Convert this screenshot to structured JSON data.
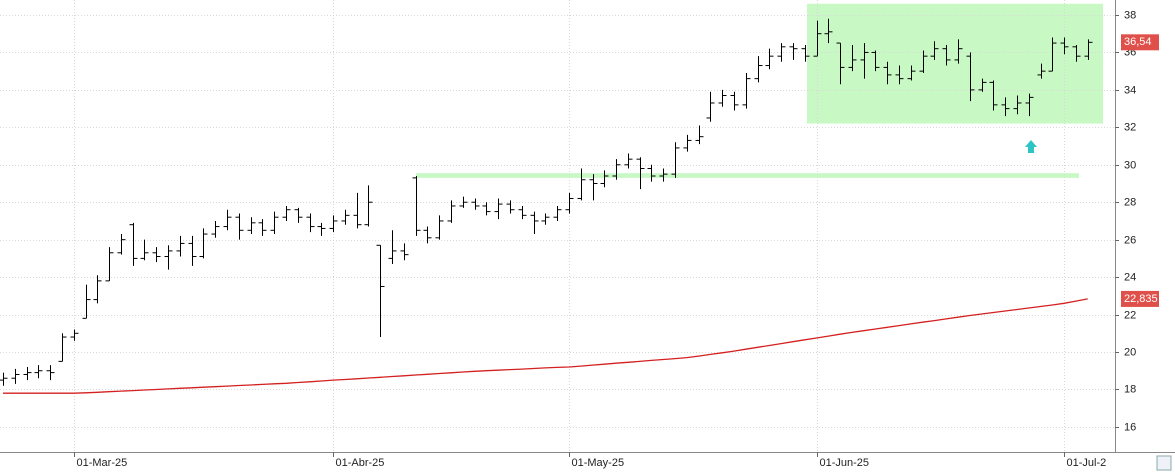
{
  "chart_data": {
    "type": "ohlc",
    "categories": [
      null,
      null,
      null,
      null,
      null,
      null,
      "01-Mar-25",
      null,
      null,
      null,
      null,
      null,
      null,
      null,
      null,
      null,
      null,
      null,
      null,
      null,
      null,
      null,
      null,
      null,
      null,
      null,
      null,
      null,
      "01-Abr-25",
      null,
      null,
      null,
      null,
      null,
      null,
      null,
      null,
      null,
      null,
      null,
      null,
      null,
      null,
      null,
      null,
      null,
      null,
      null,
      "01-May-25",
      null,
      null,
      null,
      null,
      null,
      null,
      null,
      null,
      null,
      null,
      null,
      null,
      null,
      null,
      null,
      null,
      null,
      null,
      null,
      null,
      "01-Jun-25",
      null,
      null,
      null,
      null,
      null,
      null,
      null,
      null,
      null,
      null,
      null,
      null,
      null,
      null,
      null,
      null,
      null,
      null,
      null,
      null,
      "01-Jul-2",
      null,
      null
    ],
    "open": [
      18.5,
      18.6,
      18.8,
      18.9,
      19.0,
      19.5,
      20.8,
      21.8,
      22.8,
      23.8,
      25.3,
      26.8,
      25.0,
      25.3,
      25.1,
      25.4,
      25.8,
      25.1,
      26.3,
      26.7,
      27.2,
      26.5,
      26.9,
      26.5,
      27.2,
      27.6,
      27.2,
      26.7,
      26.6,
      27.0,
      27.3,
      26.8,
      25.7,
      25.0,
      25.4,
      29.3,
      26.5,
      26.1,
      27.0,
      27.8,
      28.0,
      27.8,
      27.5,
      27.9,
      27.6,
      27.3,
      27.0,
      27.2,
      27.6,
      28.2,
      29.2,
      29.0,
      29.4,
      30.0,
      30.3,
      29.8,
      29.4,
      29.5,
      30.9,
      31.3,
      32.5,
      33.3,
      33.7,
      33.2,
      34.6,
      35.3,
      35.8,
      36.3,
      36.2,
      35.8,
      37.0,
      36.5,
      35.2,
      35.6,
      36.0,
      35.2,
      34.8,
      34.6,
      35.0,
      35.8,
      36.2,
      35.6,
      35.8,
      34.0,
      34.4,
      33.2,
      33.0,
      33.3,
      34.8,
      35.0,
      36.5,
      36.3,
      35.8
    ],
    "high": [
      18.9,
      19.1,
      19.2,
      19.3,
      19.3,
      21.0,
      21.2,
      23.6,
      24.1,
      25.6,
      26.3,
      26.9,
      26.0,
      25.6,
      25.7,
      26.2,
      26.2,
      26.6,
      27.0,
      27.6,
      27.4,
      27.2,
      27.1,
      27.5,
      27.8,
      27.7,
      27.4,
      26.9,
      27.3,
      27.6,
      28.5,
      28.9,
      25.7,
      26.5,
      25.8,
      29.4,
      26.7,
      27.3,
      28.1,
      28.3,
      28.2,
      28.0,
      28.2,
      28.1,
      27.8,
      27.5,
      27.4,
      27.8,
      28.5,
      29.8,
      29.5,
      29.7,
      30.3,
      30.6,
      30.4,
      30.0,
      29.8,
      31.2,
      31.6,
      32.1,
      33.9,
      34.0,
      33.9,
      34.9,
      35.8,
      36.2,
      36.5,
      36.5,
      36.4,
      37.7,
      37.8,
      36.5,
      36.4,
      36.5,
      36.1,
      35.5,
      35.3,
      35.3,
      36.1,
      36.6,
      36.4,
      36.7,
      36.0,
      34.6,
      34.5,
      33.6,
      33.7,
      33.8,
      35.4,
      36.8,
      36.8,
      36.4,
      36.7
    ],
    "low": [
      18.2,
      18.3,
      18.5,
      18.6,
      18.5,
      19.5,
      20.6,
      21.8,
      22.6,
      23.8,
      25.2,
      24.6,
      24.9,
      24.8,
      24.4,
      25.1,
      24.6,
      25.0,
      26.1,
      26.5,
      26.0,
      26.3,
      26.2,
      26.3,
      27.0,
      26.9,
      26.4,
      26.2,
      26.4,
      26.8,
      26.6,
      26.7,
      20.8,
      24.7,
      24.9,
      26.2,
      25.8,
      26.0,
      26.9,
      27.7,
      27.6,
      27.3,
      27.1,
      27.4,
      27.1,
      26.3,
      26.8,
      27.0,
      27.4,
      28.1,
      28.1,
      28.8,
      29.2,
      29.8,
      28.7,
      29.1,
      29.1,
      29.3,
      30.7,
      31.1,
      32.3,
      33.1,
      32.9,
      33.0,
      34.4,
      35.1,
      35.5,
      35.6,
      35.5,
      35.8,
      36.5,
      34.3,
      35.0,
      34.6,
      35.0,
      34.3,
      34.3,
      34.5,
      34.9,
      35.6,
      35.3,
      35.4,
      33.4,
      33.9,
      32.9,
      32.6,
      32.7,
      32.6,
      34.6,
      35.0,
      35.9,
      35.5,
      35.6
    ],
    "close": [
      18.6,
      18.8,
      18.9,
      19.0,
      18.9,
      20.8,
      21.0,
      22.8,
      23.8,
      25.3,
      26.0,
      25.0,
      25.3,
      25.1,
      25.4,
      25.8,
      25.1,
      26.3,
      26.7,
      27.2,
      26.5,
      26.9,
      26.5,
      27.2,
      27.6,
      27.2,
      26.7,
      26.6,
      27.0,
      27.3,
      26.8,
      28.0,
      23.5,
      25.4,
      25.2,
      26.5,
      26.1,
      27.0,
      27.8,
      28.0,
      27.8,
      27.5,
      27.9,
      27.6,
      27.3,
      27.0,
      27.2,
      27.6,
      28.2,
      29.2,
      29.0,
      29.4,
      30.0,
      30.3,
      29.8,
      29.4,
      29.5,
      30.9,
      31.3,
      31.5,
      33.3,
      33.7,
      33.2,
      34.6,
      35.3,
      35.8,
      36.3,
      36.2,
      35.8,
      37.0,
      37.1,
      35.2,
      35.6,
      36.0,
      35.2,
      34.8,
      34.6,
      35.0,
      35.8,
      36.2,
      35.6,
      36.2,
      34.0,
      34.4,
      33.2,
      33.0,
      33.3,
      33.6,
      35.0,
      36.5,
      36.3,
      35.8,
      36.54
    ],
    "color": "#000000",
    "moving_average": {
      "color": "#d42020",
      "values": [
        17.8,
        17.8,
        17.8,
        17.8,
        17.8,
        17.8,
        17.8,
        17.82,
        17.85,
        17.88,
        17.91,
        17.94,
        17.97,
        18.0,
        18.03,
        18.06,
        18.09,
        18.12,
        18.15,
        18.18,
        18.21,
        18.24,
        18.27,
        18.3,
        18.33,
        18.37,
        18.41,
        18.45,
        18.5,
        18.53,
        18.57,
        18.61,
        18.65,
        18.69,
        18.73,
        18.77,
        18.81,
        18.85,
        18.89,
        18.93,
        18.97,
        19.0,
        19.03,
        19.06,
        19.09,
        19.12,
        19.15,
        19.18,
        19.2,
        19.25,
        19.3,
        19.35,
        19.4,
        19.45,
        19.5,
        19.55,
        19.6,
        19.65,
        19.7,
        19.78,
        19.87,
        19.96,
        20.05,
        20.15,
        20.25,
        20.35,
        20.45,
        20.55,
        20.65,
        20.75,
        20.85,
        20.95,
        21.05,
        21.14,
        21.23,
        21.32,
        21.41,
        21.5,
        21.59,
        21.68,
        21.77,
        21.86,
        21.95,
        22.03,
        22.11,
        22.19,
        22.27,
        22.35,
        22.43,
        22.51,
        22.6,
        22.72,
        22.835
      ]
    },
    "price_tags": [
      {
        "value": 36.54,
        "label": "36,54",
        "color": "#e0504a"
      },
      {
        "value": 22.835,
        "label": "22,835",
        "color": "#e0504a"
      }
    ],
    "zones": [
      {
        "ymin": 32.2,
        "ymax": 38.6,
        "color": "#c8f9c4"
      },
      {
        "ymin": 29.3,
        "ymax": 29.55,
        "color": "#c8f9c4"
      }
    ],
    "ylim": [
      14.66,
      38.8
    ],
    "yticks": [
      16,
      18,
      20,
      22,
      24,
      26,
      28,
      30,
      32,
      34,
      36,
      38
    ],
    "grid": true
  }
}
